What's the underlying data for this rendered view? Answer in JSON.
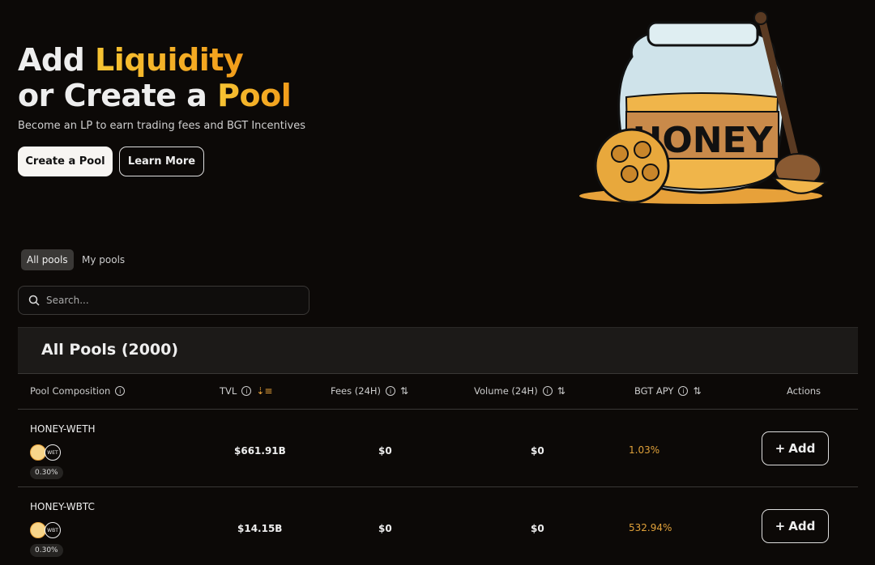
{
  "hero": {
    "title_part1": "Add ",
    "title_accent1": "Liquidity",
    "title_part2": "or Create a ",
    "title_accent2": "Pool",
    "subtitle": "Become an LP to earn trading fees and BGT Incentives",
    "create_label": "Create a Pool",
    "learn_label": "Learn More",
    "illustration_text": "HONEY"
  },
  "tabs": [
    {
      "label": "All pools",
      "active": true
    },
    {
      "label": "My pools",
      "active": false
    }
  ],
  "search": {
    "placeholder": "Search...",
    "value": ""
  },
  "table": {
    "title": "All Pools (2000)",
    "columns": [
      "Pool Composition",
      "TVL",
      "Fees (24H)",
      "Volume (24H)",
      "BGT APY",
      "Actions"
    ],
    "rows": [
      {
        "name": "HONEY-WETH",
        "token2": "WET",
        "fee": "0.30%",
        "tvl": "$661.91B",
        "fees": "$0",
        "volume": "$0",
        "apy": "1.03%",
        "action": "Add"
      },
      {
        "name": "HONEY-WBTC",
        "token2": "WBT",
        "fee": "0.30%",
        "tvl": "$14.15B",
        "fees": "$0",
        "volume": "$0",
        "apy": "532.94%",
        "action": "Add"
      }
    ]
  },
  "colors": {
    "accent": "#f6c433",
    "apy": "#e0a13a",
    "background": "#0c0907"
  }
}
